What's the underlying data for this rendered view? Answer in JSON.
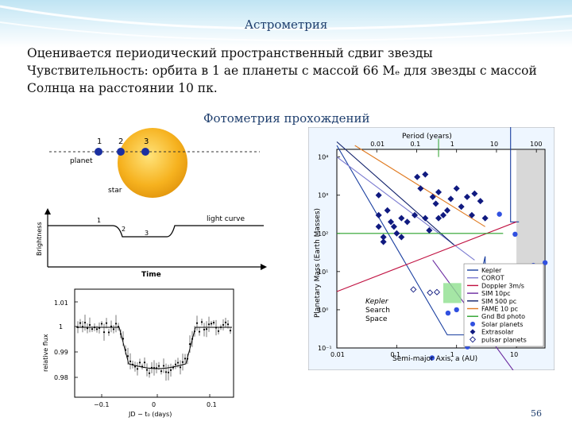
{
  "slide": {
    "title": "Астрометрия",
    "lines": [
      "Оценивается периодический пространственный сдвиг звезды",
      "Чувствительность: орбита в 1 ае планеты с массой 66 Mₑ для звезды с массой",
      "Солнца на расстоянии 10 пк."
    ],
    "subtitle": "Фотометрия прохождений",
    "page_number": "56"
  },
  "transit_diagram": {
    "points": [
      "1",
      "2",
      "3"
    ],
    "planet_label": "planet",
    "star_label": "star",
    "curve_label": "light curve",
    "y_label": "Brightness",
    "x_label": "Time",
    "curve_points": [
      "1",
      "2",
      "3"
    ]
  },
  "flux_plot": {
    "y_label": "relative flux",
    "x_label": "JD − t₀ (days)",
    "y_ticks": [
      "1.01",
      "1",
      "0.99",
      "0.98"
    ],
    "x_ticks": [
      "−0.1",
      "0",
      "0.1"
    ]
  },
  "mass_chart": {
    "top_axis_label": "Period (years)",
    "top_ticks": [
      "0.01",
      "0.1",
      "1",
      "10",
      "100"
    ],
    "y_label": "Planetary Mass (Earth Masses)",
    "x_label": "Semi-major Axis, a (AU)",
    "x_ticks": [
      "0.01",
      "0.1",
      "1",
      "10"
    ],
    "y_ticks": [
      "10⁴",
      "10³",
      "10²",
      "10¹",
      "10⁰",
      "10⁻¹"
    ],
    "region_label": [
      "Kepler",
      "Search",
      "Space"
    ],
    "legend": [
      {
        "label": "Kepler",
        "color": "#1a3fa0",
        "kind": "line"
      },
      {
        "label": "COROT",
        "color": "#7a7ad0",
        "kind": "line"
      },
      {
        "label": "Doppler 3m/s",
        "color": "#c01040",
        "kind": "line"
      },
      {
        "label": "SIM 10pc",
        "color": "#6a2aa0",
        "kind": "line"
      },
      {
        "label": "SIM 500 pc",
        "color": "#10206a",
        "kind": "line"
      },
      {
        "label": "FAME 10 pc",
        "color": "#e07a20",
        "kind": "line"
      },
      {
        "label": "Gnd Bd photo",
        "color": "#2aa02a",
        "kind": "line"
      },
      {
        "label": "Solar planets",
        "color": "#3050e0",
        "kind": "circle"
      },
      {
        "label": "Extrasolar",
        "color": "#101a80",
        "kind": "diamond"
      },
      {
        "label": "pulsar planets",
        "color": "#101a80",
        "kind": "open-diamond"
      }
    ],
    "extrasolar_points": [
      [
        0.05,
        1000
      ],
      [
        0.05,
        300
      ],
      [
        0.05,
        150
      ],
      [
        0.06,
        80
      ],
      [
        0.07,
        400
      ],
      [
        0.08,
        200
      ],
      [
        0.09,
        150
      ],
      [
        0.1,
        100
      ],
      [
        0.12,
        250
      ],
      [
        0.15,
        200
      ],
      [
        0.2,
        300
      ],
      [
        0.22,
        3000
      ],
      [
        0.25,
        1500
      ],
      [
        0.3,
        250
      ],
      [
        0.35,
        120
      ],
      [
        0.4,
        900
      ],
      [
        0.45,
        600
      ],
      [
        0.5,
        1200
      ],
      [
        0.6,
        300
      ],
      [
        0.7,
        400
      ],
      [
        0.8,
        800
      ],
      [
        1.0,
        1500
      ],
      [
        1.2,
        500
      ],
      [
        1.5,
        900
      ],
      [
        2.0,
        1100
      ],
      [
        2.5,
        700
      ],
      [
        3.0,
        250
      ],
      [
        0.3,
        3500
      ],
      [
        0.06,
        60
      ],
      [
        0.12,
        80
      ],
      [
        0.5,
        250
      ],
      [
        1.8,
        300
      ]
    ],
    "solar_points": [
      [
        0.39,
        0.055
      ],
      [
        0.72,
        0.82
      ],
      [
        1.0,
        1.0
      ],
      [
        1.52,
        0.107
      ],
      [
        5.2,
        318
      ],
      [
        9.5,
        95
      ],
      [
        19.2,
        14.5
      ],
      [
        30.1,
        17.1
      ]
    ],
    "pulsar_points": [
      [
        0.19,
        3.4
      ],
      [
        0.36,
        2.8
      ],
      [
        0.47,
        2.9
      ]
    ]
  }
}
